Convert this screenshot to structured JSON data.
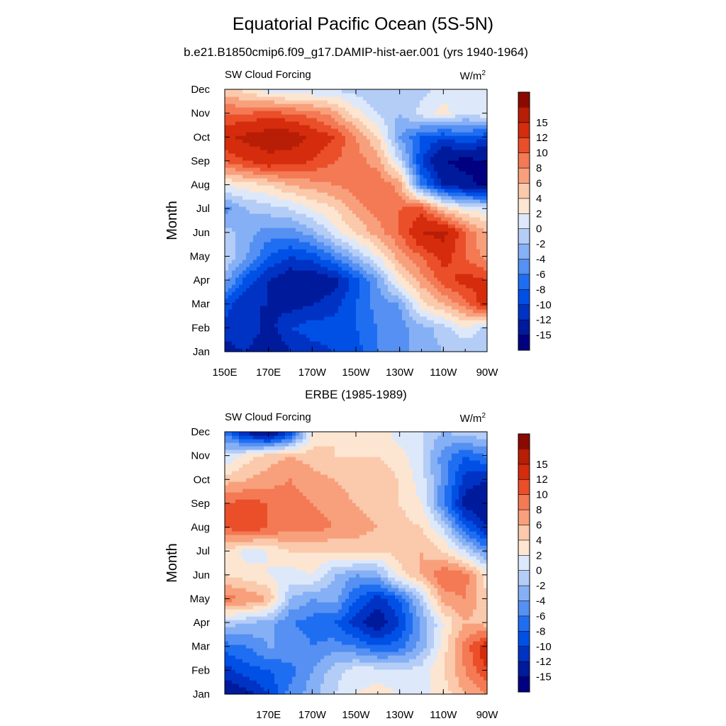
{
  "page": {
    "title": "Equatorial Pacific Ocean (5S-5N)",
    "subtitle": "b.e21.B1850cmip6.f09_g17.DAMIP-hist-aer.001 (yrs 1940-1964)",
    "lower_title": "ERBE (1985-1989)"
  },
  "colors": {
    "levels": [
      "#000080",
      "#001a9c",
      "#0033c4",
      "#0050e6",
      "#1f6ef2",
      "#5590f2",
      "#86b0f5",
      "#b4cdf7",
      "#dde8fa",
      "#fce6d2",
      "#fbc9ab",
      "#f8a07c",
      "#f37a55",
      "#ea4f2a",
      "#d42c0c",
      "#b81d06",
      "#8a0a00"
    ]
  },
  "chart_data": [
    {
      "type": "heatmap",
      "name": "model",
      "panel_label": "SW Cloud Forcing",
      "units": "W/m2",
      "ylabel": "Month",
      "xlim": [
        150,
        270
      ],
      "x_ticks": [
        150,
        170,
        190,
        210,
        230,
        250,
        270
      ],
      "x_tick_labels": [
        "150E",
        "170E",
        "170W",
        "150W",
        "130W",
        "110W",
        "90W"
      ],
      "y_tick_labels": [
        "Jan",
        "Feb",
        "Mar",
        "Apr",
        "May",
        "Jun",
        "Jul",
        "Aug",
        "Sep",
        "Oct",
        "Nov",
        "Dec"
      ],
      "colorbar_labels": [
        "-15",
        "-12",
        "-10",
        "-8",
        "-6",
        "-4",
        "-2",
        "0",
        "2",
        "4",
        "6",
        "8",
        "10",
        "12",
        "15"
      ],
      "x": [
        150,
        160,
        170,
        180,
        190,
        200,
        210,
        220,
        230,
        240,
        250,
        260,
        270
      ],
      "y": [
        "Jan",
        "Feb",
        "Mar",
        "Apr",
        "May",
        "Jun",
        "Jul",
        "Aug",
        "Sep",
        "Oct",
        "Nov",
        "Dec"
      ],
      "z": [
        [
          -13,
          -12,
          -15,
          -12,
          -11,
          -10,
          -9,
          -6,
          -5,
          -3,
          -2,
          -2,
          -1
        ],
        [
          -11,
          -10,
          -13,
          -10,
          -9,
          -9,
          -8,
          -6,
          -5,
          -3,
          -1,
          2,
          -1
        ],
        [
          -9,
          -12,
          -12,
          -13,
          -12,
          -11,
          -8,
          -5,
          -4,
          3,
          6,
          9,
          14
        ],
        [
          -3,
          -9,
          -12,
          -14,
          -14,
          -13,
          -9,
          -4,
          3,
          7,
          11,
          13,
          12
        ],
        [
          0,
          -4,
          -8,
          -10,
          -9,
          -6,
          -2,
          2,
          7,
          10,
          13,
          10,
          7
        ],
        [
          -1,
          -3,
          -5,
          -5,
          -3,
          1,
          4,
          7,
          10,
          15,
          16,
          10,
          6
        ],
        [
          -5,
          -2,
          -1,
          0,
          2,
          4,
          7,
          9,
          10,
          11,
          5,
          2,
          1
        ],
        [
          2,
          3,
          4,
          6,
          7,
          8,
          9,
          10,
          7,
          -6,
          -12,
          -14,
          -16
        ],
        [
          10,
          12,
          14,
          13,
          12,
          10,
          9,
          7,
          0,
          -10,
          -15,
          -16,
          -15
        ],
        [
          14,
          16,
          17,
          17,
          14,
          12,
          8,
          4,
          -4,
          -8,
          -10,
          -8,
          -10
        ],
        [
          10,
          10,
          11,
          10,
          9,
          7,
          3,
          0,
          -2,
          1,
          3,
          0,
          2
        ],
        [
          5,
          3,
          1,
          0,
          0,
          0,
          -1,
          -2,
          -2,
          -1,
          1,
          1,
          0
        ]
      ]
    },
    {
      "type": "heatmap",
      "name": "obs",
      "panel_label": "SW Cloud Forcing",
      "units": "W/m2",
      "ylabel": "Month",
      "xlim": [
        150,
        270
      ],
      "x_ticks": [
        170,
        190,
        210,
        230,
        250,
        270
      ],
      "x_tick_labels": [
        "170E",
        "170W",
        "150W",
        "130W",
        "110W",
        "90W"
      ],
      "y_tick_labels": [
        "Jan",
        "Feb",
        "Mar",
        "Apr",
        "May",
        "Jun",
        "Jul",
        "Aug",
        "Sep",
        "Oct",
        "Nov",
        "Dec"
      ],
      "colorbar_labels": [
        "-15",
        "-12",
        "-10",
        "-8",
        "-6",
        "-4",
        "-2",
        "0",
        "2",
        "4",
        "6",
        "8",
        "10",
        "12",
        "15"
      ],
      "x": [
        150,
        160,
        170,
        180,
        190,
        200,
        210,
        220,
        230,
        240,
        250,
        260,
        270
      ],
      "y": [
        "Jan",
        "Feb",
        "Mar",
        "Apr",
        "May",
        "Jun",
        "Jul",
        "Aug",
        "Sep",
        "Oct",
        "Nov",
        "Dec"
      ],
      "z": [
        [
          -14,
          -13,
          -10,
          -5,
          -3,
          0,
          2,
          3,
          2,
          1,
          3,
          6,
          8
        ],
        [
          -11,
          -9,
          -8,
          -7,
          -4,
          -1,
          1,
          1,
          0,
          1,
          4,
          8,
          12
        ],
        [
          -7,
          -6,
          -4,
          -4,
          -6,
          -5,
          -6,
          -8,
          -7,
          -3,
          3,
          9,
          14
        ],
        [
          -1,
          -2,
          -3,
          -6,
          -7,
          -8,
          -11,
          -14,
          -10,
          -4,
          2,
          6,
          5
        ],
        [
          9,
          8,
          6,
          -2,
          -4,
          -3,
          -8,
          -11,
          -8,
          -1,
          7,
          8,
          4
        ],
        [
          4,
          3,
          2,
          1,
          2,
          -2,
          -4,
          -3,
          3,
          6,
          10,
          9,
          3
        ],
        [
          4,
          1,
          2,
          4,
          4,
          4,
          5,
          4,
          5,
          6,
          4,
          0,
          -5
        ],
        [
          10,
          12,
          10,
          9,
          9,
          8,
          7,
          6,
          5,
          4,
          0,
          -8,
          -12
        ],
        [
          10,
          11,
          10,
          9,
          8,
          7,
          6,
          5,
          4,
          2,
          -6,
          -13,
          -14
        ],
        [
          5,
          6,
          7,
          8,
          7,
          6,
          5,
          5,
          4,
          1,
          -5,
          -11,
          -12
        ],
        [
          0,
          3,
          5,
          6,
          5,
          4,
          4,
          4,
          3,
          0,
          -5,
          -8,
          -6
        ],
        [
          -6,
          -13,
          -16,
          -10,
          2,
          4,
          3,
          3,
          1,
          0,
          -2,
          -1,
          0
        ]
      ]
    }
  ]
}
